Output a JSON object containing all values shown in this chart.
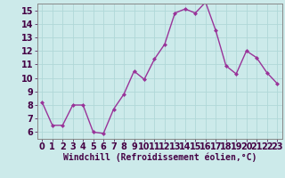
{
  "x": [
    0,
    1,
    2,
    3,
    4,
    5,
    6,
    7,
    8,
    9,
    10,
    11,
    12,
    13,
    14,
    15,
    16,
    17,
    18,
    19,
    20,
    21,
    22,
    23
  ],
  "y": [
    8.2,
    6.5,
    6.5,
    8.0,
    8.0,
    6.0,
    5.9,
    7.7,
    8.8,
    10.5,
    9.9,
    11.4,
    12.5,
    14.8,
    15.1,
    14.8,
    15.6,
    13.5,
    10.9,
    10.3,
    12.0,
    11.5,
    10.4,
    9.6
  ],
  "line_color": "#993399",
  "marker": "D",
  "marker_size": 2,
  "xlabel": "Windchill (Refroidissement éolien,°C)",
  "xlabel_fontsize": 7,
  "xlim": [
    -0.5,
    23.5
  ],
  "ylim": [
    5.5,
    15.5
  ],
  "yticks": [
    6,
    7,
    8,
    9,
    10,
    11,
    12,
    13,
    14,
    15
  ],
  "xticks": [
    0,
    1,
    2,
    3,
    4,
    5,
    6,
    7,
    8,
    9,
    10,
    11,
    12,
    13,
    14,
    15,
    16,
    17,
    18,
    19,
    20,
    21,
    22,
    23
  ],
  "grid_color": "#b0d8d8",
  "bg_color": "#cceaea",
  "tick_fontsize": 7,
  "line_width": 1.0,
  "spine_color": "#888888"
}
